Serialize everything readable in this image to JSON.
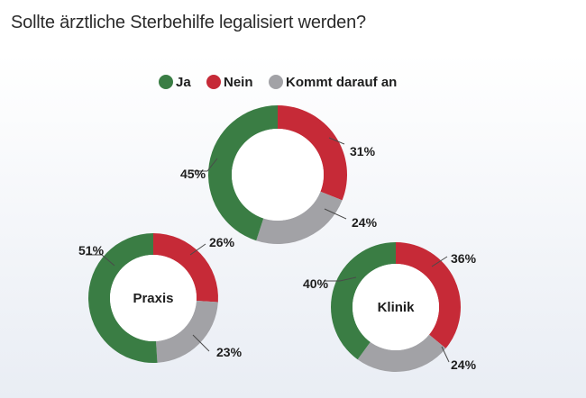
{
  "title": "Sollte ärztliche Sterbehilfe legalisiert werden?",
  "colors": {
    "ja": "#3a7d44",
    "nein": "#c62a37",
    "kommt": "#a2a2a6"
  },
  "chart_data": {
    "type": "pie",
    "title": "Sollte ärztliche Sterbehilfe legalisiert werden?",
    "legend": {
      "placement": "top",
      "entries": [
        "Ja",
        "Nein",
        "Kommt darauf an"
      ]
    },
    "categories": [
      "Ja",
      "Nein",
      "Kommt darauf an"
    ],
    "charts": [
      {
        "label": "",
        "values": [
          45,
          31,
          24
        ],
        "labels": [
          "45%",
          "31%",
          "24%"
        ]
      },
      {
        "label": "Praxis",
        "values": [
          51,
          26,
          23
        ],
        "labels": [
          "51%",
          "26%",
          "23%"
        ]
      },
      {
        "label": "Klinik",
        "values": [
          40,
          36,
          24
        ],
        "labels": [
          "40%",
          "36%",
          "24%"
        ]
      }
    ]
  }
}
